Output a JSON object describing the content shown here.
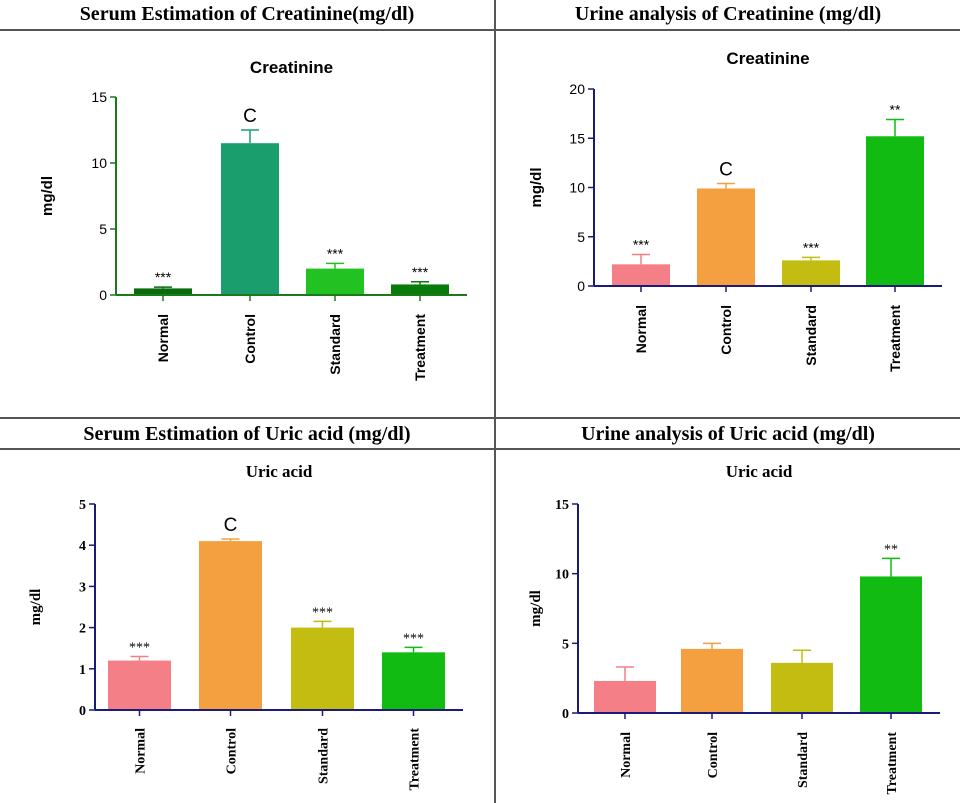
{
  "panels": [
    {
      "header": "Serum Estimation of Creatinine(mg/dl)",
      "chart_data": {
        "type": "bar",
        "title": "Creatinine",
        "ylabel": "mg/dl",
        "xlabel": "",
        "categories": [
          "Normal",
          "Control",
          "Standard",
          "Treatment"
        ],
        "values": [
          0.5,
          11.5,
          2.0,
          0.8
        ],
        "errors": [
          0.1,
          1.0,
          0.4,
          0.2
        ],
        "annotations": [
          "***",
          "C",
          "***",
          "***"
        ],
        "ylim": [
          0,
          15
        ],
        "yticks": [
          0,
          5,
          10,
          15
        ],
        "colors": [
          "#0a6b0a",
          "#1a9e6e",
          "#22c222",
          "#0a7a0a"
        ],
        "axis_color": "#1a7a1a"
      }
    },
    {
      "header": "Urine analysis of Creatinine (mg/dl)",
      "chart_data": {
        "type": "bar",
        "title": "Creatinine",
        "ylabel": "mg/dl",
        "xlabel": "",
        "categories": [
          "Normal",
          "Control",
          "Standard",
          "Treatment"
        ],
        "values": [
          2.2,
          9.9,
          2.6,
          15.2
        ],
        "errors": [
          1.0,
          0.5,
          0.3,
          1.7
        ],
        "annotations": [
          "***",
          "C",
          "***",
          "**"
        ],
        "ylim": [
          0,
          20
        ],
        "yticks": [
          0,
          5,
          10,
          15,
          20
        ],
        "colors": [
          "#f47f86",
          "#f5a040",
          "#c2bd10",
          "#11bb11"
        ],
        "axis_color": "#1a1a7a"
      }
    },
    {
      "header": "Serum Estimation of Uric acid (mg/dl)",
      "chart_data": {
        "type": "bar",
        "title": "Uric acid",
        "ylabel": "mg/dl",
        "xlabel": "",
        "categories": [
          "Normal",
          "Control",
          "Standard",
          "Treatment"
        ],
        "values": [
          1.2,
          4.1,
          2.0,
          1.4
        ],
        "errors": [
          0.1,
          0.05,
          0.15,
          0.12
        ],
        "annotations": [
          "***",
          "C",
          "***",
          "***"
        ],
        "ylim": [
          0,
          5
        ],
        "yticks": [
          0,
          1,
          2,
          3,
          4,
          5
        ],
        "colors": [
          "#f47f86",
          "#f5a040",
          "#c2bd10",
          "#11bb11"
        ],
        "axis_color": "#1a1a7a"
      }
    },
    {
      "header": "Urine analysis of Uric acid (mg/dl)",
      "chart_data": {
        "type": "bar",
        "title": "Uric acid",
        "ylabel": "mg/dl",
        "xlabel": "",
        "categories": [
          "Normal",
          "Control",
          "Standard",
          "Treatment"
        ],
        "values": [
          2.3,
          4.6,
          3.6,
          9.8
        ],
        "errors": [
          1.0,
          0.4,
          0.9,
          1.3
        ],
        "annotations": [
          "",
          "",
          "",
          "**"
        ],
        "ylim": [
          0,
          15
        ],
        "yticks": [
          0,
          5,
          10,
          15
        ],
        "colors": [
          "#f47f86",
          "#f5a040",
          "#c2bd10",
          "#11bb11"
        ],
        "axis_color": "#1a1a7a"
      }
    }
  ]
}
